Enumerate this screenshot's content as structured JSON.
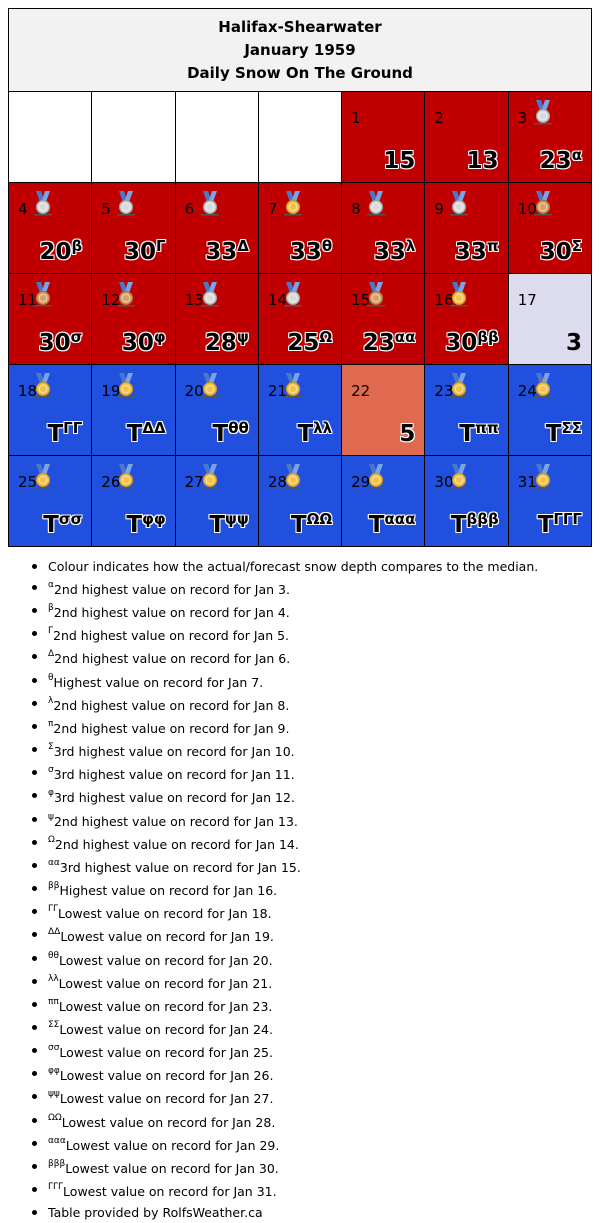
{
  "header": {
    "station": "Halifax-Shearwater",
    "month": "January 1959",
    "subtitle": "Daily Snow On The Ground"
  },
  "colors": {
    "above": "#c00000",
    "below": "#2050dd",
    "near": "#dcdcee",
    "salmon": "#e06a50",
    "empty": "#ffffff"
  },
  "days": [
    {
      "day": "1",
      "value": "15",
      "sup": "",
      "medal": "",
      "color": "above"
    },
    {
      "day": "2",
      "value": "13",
      "sup": "",
      "medal": "",
      "color": "above"
    },
    {
      "day": "3",
      "value": "23",
      "sup": "α",
      "medal": "silver",
      "color": "above"
    },
    {
      "day": "4",
      "value": "20",
      "sup": "β",
      "medal": "silver",
      "color": "above"
    },
    {
      "day": "5",
      "value": "30",
      "sup": "Γ",
      "medal": "silver",
      "color": "above"
    },
    {
      "day": "6",
      "value": "33",
      "sup": "Δ",
      "medal": "silver",
      "color": "above"
    },
    {
      "day": "7",
      "value": "33",
      "sup": "θ",
      "medal": "gold",
      "color": "above"
    },
    {
      "day": "8",
      "value": "33",
      "sup": "λ",
      "medal": "silver",
      "color": "above"
    },
    {
      "day": "9",
      "value": "33",
      "sup": "π",
      "medal": "silver",
      "color": "above"
    },
    {
      "day": "10",
      "value": "30",
      "sup": "Σ",
      "medal": "bronze",
      "color": "above"
    },
    {
      "day": "11",
      "value": "30",
      "sup": "σ",
      "medal": "bronze",
      "color": "above"
    },
    {
      "day": "12",
      "value": "30",
      "sup": "φ",
      "medal": "bronze",
      "color": "above"
    },
    {
      "day": "13",
      "value": "28",
      "sup": "ψ",
      "medal": "silver",
      "color": "above"
    },
    {
      "day": "14",
      "value": "25",
      "sup": "Ω",
      "medal": "silver",
      "color": "above"
    },
    {
      "day": "15",
      "value": "23",
      "sup": "αα",
      "medal": "bronze",
      "color": "above"
    },
    {
      "day": "16",
      "value": "30",
      "sup": "ββ",
      "medal": "gold",
      "color": "above"
    },
    {
      "day": "17",
      "value": "3",
      "sup": "",
      "medal": "",
      "color": "near"
    },
    {
      "day": "18",
      "value": "T",
      "sup": "ΓΓ",
      "medal": "gold",
      "color": "below"
    },
    {
      "day": "19",
      "value": "T",
      "sup": "ΔΔ",
      "medal": "gold",
      "color": "below"
    },
    {
      "day": "20",
      "value": "T",
      "sup": "θθ",
      "medal": "gold",
      "color": "below"
    },
    {
      "day": "21",
      "value": "T",
      "sup": "λλ",
      "medal": "gold",
      "color": "below"
    },
    {
      "day": "22",
      "value": "5",
      "sup": "",
      "medal": "",
      "color": "salmon"
    },
    {
      "day": "23",
      "value": "T",
      "sup": "ππ",
      "medal": "gold",
      "color": "below"
    },
    {
      "day": "24",
      "value": "T",
      "sup": "ΣΣ",
      "medal": "gold",
      "color": "below"
    },
    {
      "day": "25",
      "value": "T",
      "sup": "σσ",
      "medal": "gold",
      "color": "below"
    },
    {
      "day": "26",
      "value": "T",
      "sup": "φφ",
      "medal": "gold",
      "color": "below"
    },
    {
      "day": "27",
      "value": "T",
      "sup": "ψψ",
      "medal": "gold",
      "color": "below"
    },
    {
      "day": "28",
      "value": "T",
      "sup": "ΩΩ",
      "medal": "gold",
      "color": "below"
    },
    {
      "day": "29",
      "value": "T",
      "sup": "ααα",
      "medal": "gold",
      "color": "below"
    },
    {
      "day": "30",
      "value": "T",
      "sup": "βββ",
      "medal": "gold",
      "color": "below"
    },
    {
      "day": "31",
      "value": "T",
      "sup": "ΓΓΓ",
      "medal": "gold",
      "color": "below"
    }
  ],
  "notes": [
    {
      "sup": "",
      "text": "Colour indicates how the actual/forecast snow depth compares to the median."
    },
    {
      "sup": "α",
      "text": "2nd highest value on record for Jan 3."
    },
    {
      "sup": "β",
      "text": "2nd highest value on record for Jan 4."
    },
    {
      "sup": "Γ",
      "text": "2nd highest value on record for Jan 5."
    },
    {
      "sup": "Δ",
      "text": "2nd highest value on record for Jan 6."
    },
    {
      "sup": "θ",
      "text": "Highest value on record for Jan 7."
    },
    {
      "sup": "λ",
      "text": "2nd highest value on record for Jan 8."
    },
    {
      "sup": "π",
      "text": "2nd highest value on record for Jan 9."
    },
    {
      "sup": "Σ",
      "text": "3rd highest value on record for Jan 10."
    },
    {
      "sup": "σ",
      "text": "3rd highest value on record for Jan 11."
    },
    {
      "sup": "φ",
      "text": "3rd highest value on record for Jan 12."
    },
    {
      "sup": "ψ",
      "text": "2nd highest value on record for Jan 13."
    },
    {
      "sup": "Ω",
      "text": "2nd highest value on record for Jan 14."
    },
    {
      "sup": "αα",
      "text": "3rd highest value on record for Jan 15."
    },
    {
      "sup": "ββ",
      "text": "Highest value on record for Jan 16."
    },
    {
      "sup": "ΓΓ",
      "text": "Lowest value on record for Jan 18."
    },
    {
      "sup": "ΔΔ",
      "text": "Lowest value on record for Jan 19."
    },
    {
      "sup": "θθ",
      "text": "Lowest value on record for Jan 20."
    },
    {
      "sup": "λλ",
      "text": "Lowest value on record for Jan 21."
    },
    {
      "sup": "ππ",
      "text": "Lowest value on record for Jan 23."
    },
    {
      "sup": "ΣΣ",
      "text": "Lowest value on record for Jan 24."
    },
    {
      "sup": "σσ",
      "text": "Lowest value on record for Jan 25."
    },
    {
      "sup": "φφ",
      "text": "Lowest value on record for Jan 26."
    },
    {
      "sup": "ψψ",
      "text": "Lowest value on record for Jan 27."
    },
    {
      "sup": "ΩΩ",
      "text": "Lowest value on record for Jan 28."
    },
    {
      "sup": "ααα",
      "text": "Lowest value on record for Jan 29."
    },
    {
      "sup": "βββ",
      "text": "Lowest value on record for Jan 30."
    },
    {
      "sup": "ΓΓΓ",
      "text": "Lowest value on record for Jan 31."
    },
    {
      "sup": "",
      "text": "Table provided by RolfsWeather.ca"
    }
  ]
}
